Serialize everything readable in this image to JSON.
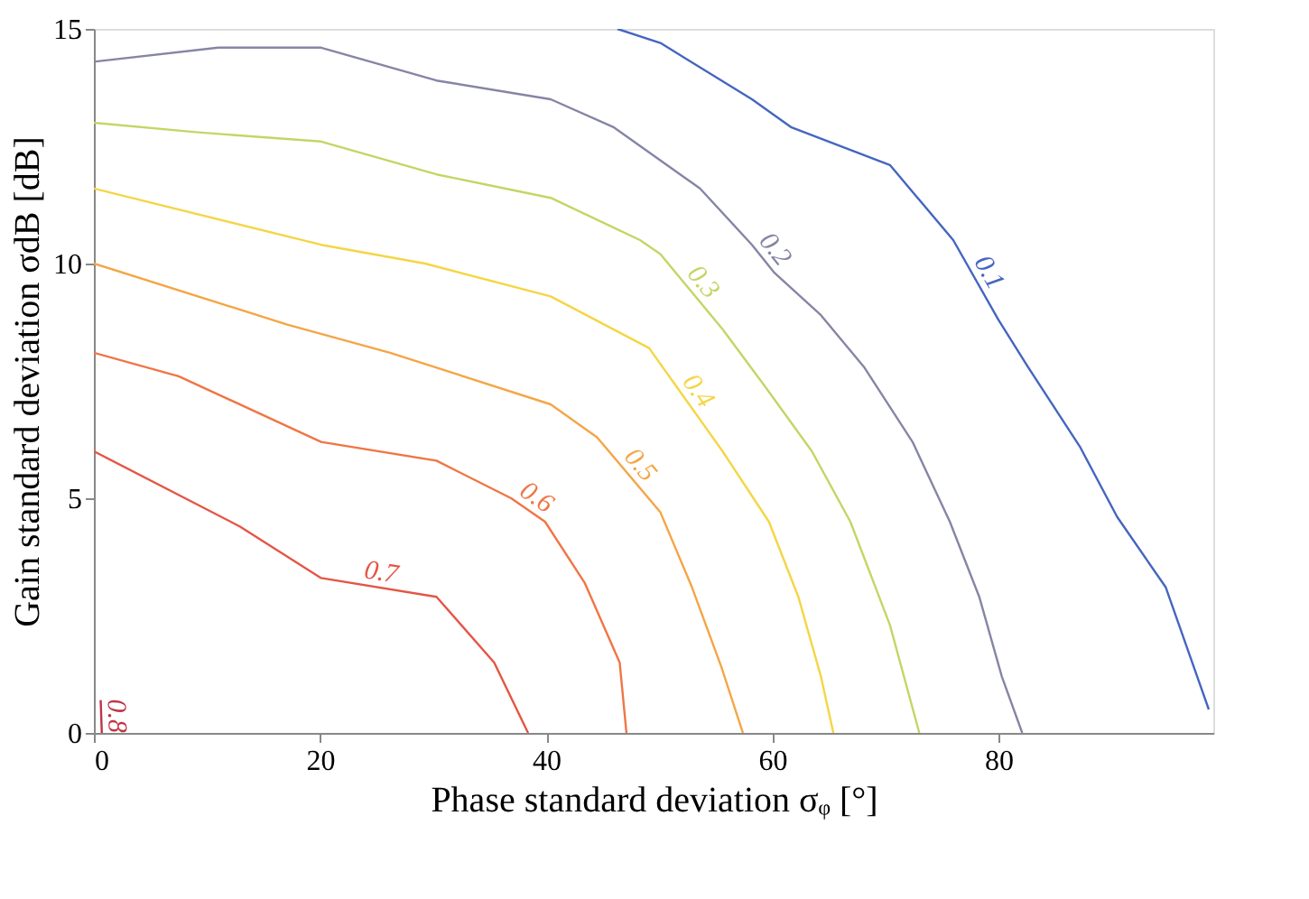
{
  "chart_data": {
    "type": "line",
    "xlabel": "Phase standard deviation σᵩ [°]",
    "ylabel": "Gain standard deviation σdB [dB]",
    "xlim": [
      0,
      99
    ],
    "ylim": [
      0,
      15
    ],
    "xticks": [
      0,
      20,
      40,
      60,
      80
    ],
    "yticks": [
      0,
      5,
      10,
      15
    ],
    "grid": false,
    "legend": false,
    "marker": "none",
    "line_style": "solid",
    "series": [
      {
        "name": "0.1",
        "color": "#4565c0",
        "x": [
          46.3,
          50.1,
          58.2,
          61.7,
          70.4,
          76.0,
          80.0,
          82.6,
          87.2,
          90.5,
          94.8,
          98.6
        ],
        "values": [
          15.0,
          14.7,
          13.5,
          12.9,
          12.1,
          10.5,
          8.8,
          7.8,
          6.1,
          4.6,
          3.1,
          0.5
        ]
      },
      {
        "name": "0.2",
        "color": "#8585a5",
        "x": [
          0,
          11.0,
          20.1,
          30.3,
          40.4,
          46.0,
          53.6,
          58.2,
          60.2,
          64.3,
          68.1,
          72.4,
          75.7,
          78.3,
          80.3,
          82.1
        ],
        "values": [
          14.3,
          14.6,
          14.6,
          13.9,
          13.5,
          12.9,
          11.6,
          10.4,
          9.8,
          8.9,
          7.8,
          6.2,
          4.5,
          2.9,
          1.2,
          0
        ]
      },
      {
        "name": "0.3",
        "color": "#c5d565",
        "x": [
          0,
          9.0,
          20.1,
          30.3,
          40.4,
          48.3,
          50.1,
          55.6,
          59.3,
          63.5,
          66.9,
          70.4,
          73.0
        ],
        "values": [
          13.0,
          12.8,
          12.6,
          11.9,
          11.4,
          10.5,
          10.2,
          8.6,
          7.4,
          6.0,
          4.5,
          2.3,
          0
        ]
      },
      {
        "name": "0.4",
        "color": "#f5d545",
        "x": [
          0,
          20.1,
          29.3,
          40.4,
          49.1,
          55.6,
          59.7,
          62.3,
          64.3,
          65.4
        ],
        "values": [
          11.6,
          10.4,
          10.0,
          9.3,
          8.2,
          6.0,
          4.5,
          2.9,
          1.2,
          0
        ]
      },
      {
        "name": "0.5",
        "color": "#f5a545",
        "x": [
          0,
          17.1,
          26.2,
          40.4,
          44.5,
          50.1,
          52.9,
          55.5,
          57.4
        ],
        "values": [
          10.0,
          8.7,
          8.1,
          7.0,
          6.3,
          4.7,
          3.1,
          1.4,
          0
        ]
      },
      {
        "name": "0.6",
        "color": "#f07545",
        "x": [
          0,
          7.5,
          20.1,
          30.3,
          36.9,
          39.9,
          43.4,
          46.5,
          47.1
        ],
        "values": [
          8.1,
          7.6,
          6.2,
          5.8,
          5.0,
          4.5,
          3.2,
          1.5,
          0
        ]
      },
      {
        "name": "0.7",
        "color": "#e55545",
        "x": [
          0,
          12.9,
          20.1,
          30.3,
          35.4,
          38.4
        ],
        "values": [
          6.0,
          4.4,
          3.3,
          2.9,
          1.5,
          0
        ]
      },
      {
        "name": "0.8",
        "color": "#c03545",
        "x": [
          0.6,
          0.7
        ],
        "values": [
          0.7,
          0
        ]
      }
    ]
  }
}
